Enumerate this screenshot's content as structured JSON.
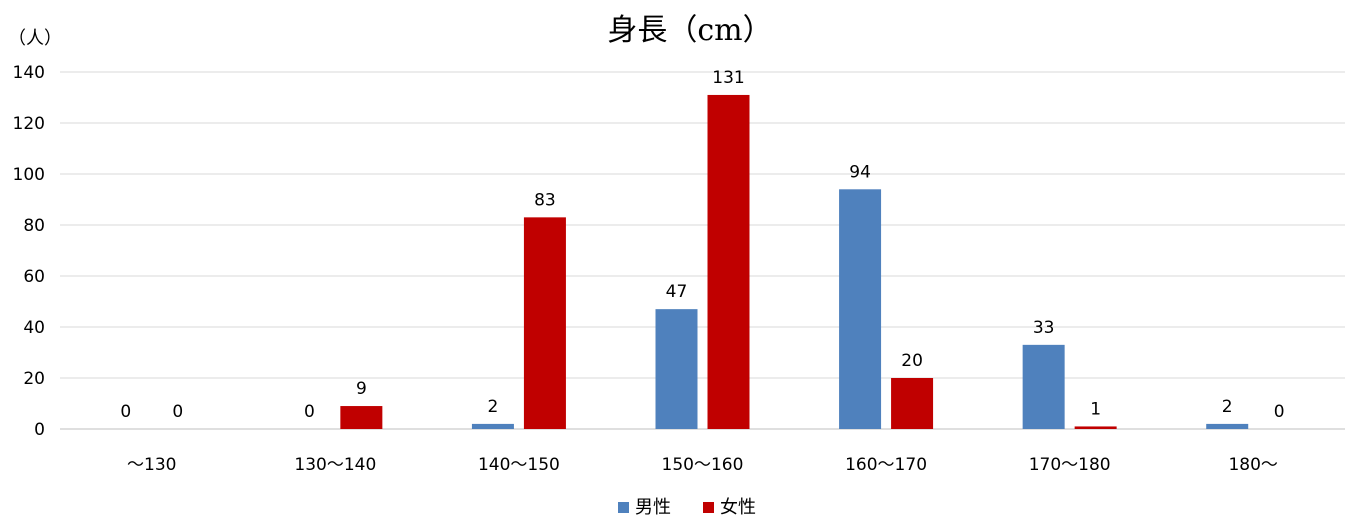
{
  "chart_data": {
    "type": "bar",
    "title": "身長（cm）",
    "ylabel": "（人）",
    "xlabel": "",
    "categories": [
      "～130",
      "130～140",
      "140～150",
      "150～160",
      "160～170",
      "170～180",
      "180～"
    ],
    "series": [
      {
        "name": "男性",
        "color": "#4F81BD",
        "values": [
          0,
          0,
          2,
          47,
          94,
          33,
          2
        ]
      },
      {
        "name": "女性",
        "color": "#C00000",
        "values": [
          0,
          9,
          83,
          131,
          20,
          1,
          0
        ]
      }
    ],
    "ylim": [
      0,
      140
    ],
    "yticks": [
      0,
      20,
      40,
      60,
      80,
      100,
      120,
      140
    ],
    "grid": true,
    "legend": "bottom",
    "data_labels": true
  }
}
